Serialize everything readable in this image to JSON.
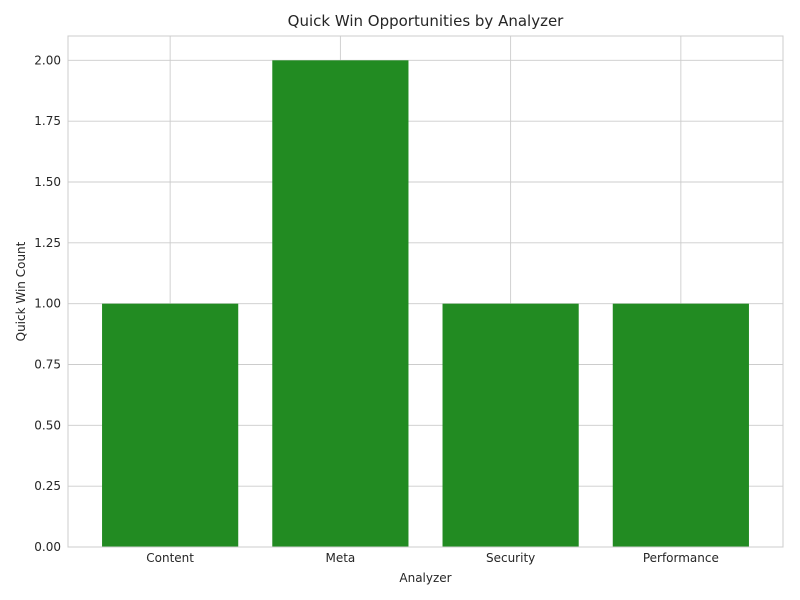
{
  "chart_data": {
    "type": "bar",
    "title": "Quick Win Opportunities by Analyzer",
    "xlabel": "Analyzer",
    "ylabel": "Quick Win Count",
    "categories": [
      "Content",
      "Meta",
      "Security",
      "Performance"
    ],
    "values": [
      1,
      2,
      1,
      1
    ],
    "ylim": [
      0,
      2.1
    ],
    "yticks": [
      "0.00",
      "0.25",
      "0.50",
      "0.75",
      "1.00",
      "1.25",
      "1.50",
      "1.75",
      "2.00"
    ],
    "grid": true,
    "bar_color": "#228b22",
    "grid_color": "#cccccc",
    "text_color": "#262626"
  }
}
